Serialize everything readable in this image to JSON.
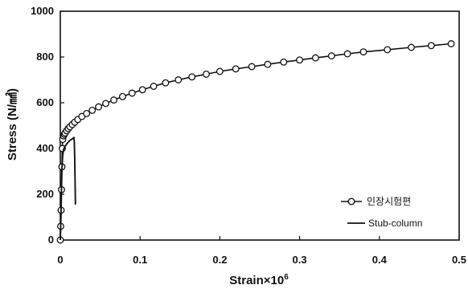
{
  "chart_data": {
    "type": "line",
    "xlabel": "Strain×10",
    "xlabel_superscript": "6",
    "ylabel": "Stress (N/㎟)",
    "xlim": [
      0,
      0.5
    ],
    "ylim": [
      0,
      1000
    ],
    "xticks": [
      0,
      0.1,
      0.2,
      0.3,
      0.4,
      0.5
    ],
    "xtick_labels": [
      "0",
      "0.1",
      "0.2",
      "0.3",
      "0.4",
      "0.5"
    ],
    "yticks": [
      0,
      200,
      400,
      600,
      800,
      1000
    ],
    "ytick_labels": [
      "0",
      "200",
      "400",
      "600",
      "800",
      "1000"
    ],
    "grid": false,
    "legend_position": "bottom-right",
    "series": [
      {
        "name": "인장시험편",
        "marker": "circle",
        "color": "#111111",
        "x": [
          0,
          0.0005,
          0.001,
          0.0015,
          0.002,
          0.0025,
          0.003,
          0.004,
          0.005,
          0.006,
          0.008,
          0.01,
          0.012,
          0.015,
          0.018,
          0.022,
          0.027,
          0.033,
          0.04,
          0.048,
          0.057,
          0.067,
          0.078,
          0.09,
          0.103,
          0.117,
          0.132,
          0.148,
          0.165,
          0.183,
          0.2,
          0.22,
          0.24,
          0.26,
          0.28,
          0.3,
          0.32,
          0.34,
          0.36,
          0.38,
          0.41,
          0.44,
          0.465,
          0.49
        ],
        "y": [
          0,
          60,
          130,
          220,
          320,
          400,
          440,
          455,
          462,
          468,
          478,
          487,
          495,
          505,
          515,
          527,
          540,
          553,
          567,
          582,
          597,
          612,
          627,
          642,
          657,
          672,
          687,
          700,
          713,
          725,
          737,
          748,
          758,
          768,
          778,
          787,
          796,
          805,
          814,
          822,
          832,
          842,
          850,
          858
        ]
      },
      {
        "name": "Stub-column",
        "marker": "none",
        "color": "#111111",
        "x": [
          0,
          0.0005,
          0.001,
          0.0015,
          0.002,
          0.003,
          0.004,
          0.006,
          0.008,
          0.01,
          0.012,
          0.014,
          0.016,
          0.017,
          0.0175,
          0.018,
          0.0185,
          0.019
        ],
        "y": [
          0,
          60,
          140,
          230,
          310,
          370,
          395,
          410,
          420,
          428,
          435,
          440,
          445,
          448,
          430,
          360,
          250,
          155
        ]
      }
    ]
  }
}
